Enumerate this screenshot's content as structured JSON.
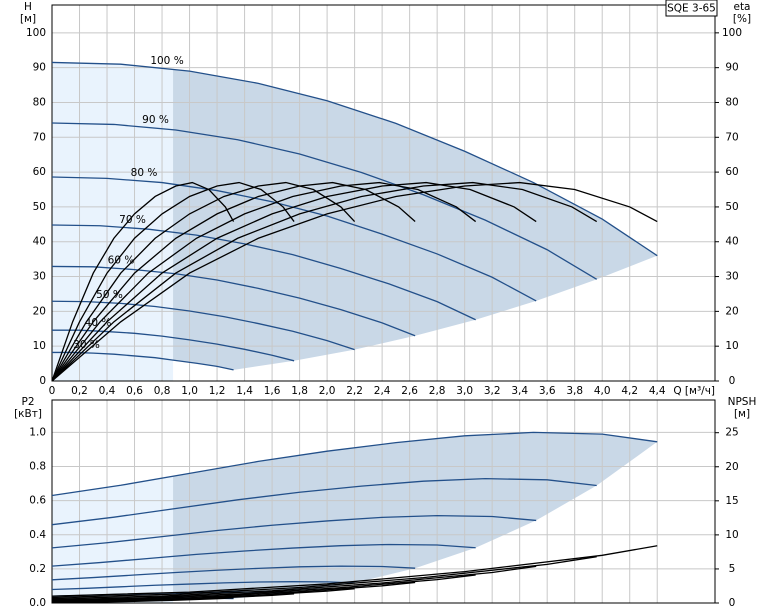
{
  "chart_data": [
    {
      "type": "line",
      "title": "SQE 3-65",
      "ylabel": "H",
      "yunit": "[м]",
      "y2label": "eta",
      "y2unit": "[%]",
      "xlabel": "Q [м³/ч]",
      "xlim": [
        0,
        4.82
      ],
      "xticks": [
        0,
        {
          "value": 0.2,
          "label": "0,2"
        },
        {
          "value": 0.4,
          "label": "0,4"
        },
        {
          "value": 0.6,
          "label": "0,6"
        },
        {
          "value": 0.8,
          "label": "0,8"
        },
        {
          "value": 1,
          "label": "1,0"
        },
        {
          "value": 1.2,
          "label": "1,2"
        },
        {
          "value": 1.4,
          "label": "1,4"
        },
        {
          "value": 1.6,
          "label": "1,6"
        },
        {
          "value": 1.8,
          "label": "1,8"
        },
        {
          "value": 2,
          "label": "2,0"
        },
        {
          "value": 2.2,
          "label": "2,2"
        },
        {
          "value": 2.4,
          "label": "2,4"
        },
        {
          "value": 2.6,
          "label": "2,6"
        },
        {
          "value": 2.8,
          "label": "2,8"
        },
        {
          "value": 3,
          "label": "3,0"
        },
        {
          "value": 3.2,
          "label": "3,2"
        },
        {
          "value": 3.4,
          "label": "3,4"
        },
        {
          "value": 3.6,
          "label": "3,6"
        },
        {
          "value": 3.8,
          "label": "3,8"
        },
        {
          "value": 4,
          "label": "4,0"
        },
        {
          "value": 4.2,
          "label": "4,2"
        },
        {
          "value": 4.4,
          "label": "4,4"
        }
      ],
      "xtick_labels": true,
      "ylim": [
        0,
        108
      ],
      "yticks": [
        0,
        10,
        20,
        30,
        40,
        50,
        60,
        70,
        80,
        90,
        100
      ],
      "y2lim": [
        0,
        108
      ],
      "y2ticks": [
        0,
        10,
        20,
        30,
        40,
        50,
        60,
        70,
        80,
        90,
        100
      ],
      "grid": true,
      "shade_from_x": 0.88,
      "shade_colors": [
        "#e9f3fd",
        "#c9d8e7"
      ],
      "series": [
        {
          "name": "100 %",
          "color": "#23508a",
          "x": [
            0,
            0.5,
            1,
            1.5,
            2,
            2.5,
            3,
            3.5,
            4,
            4.4
          ],
          "values": [
            91.5,
            91,
            89,
            85.5,
            80.5,
            74,
            66,
            57,
            46.5,
            36
          ]
        },
        {
          "name": "90 %",
          "color": "#23508a",
          "x": [
            0,
            0.45,
            0.9,
            1.35,
            1.8,
            2.25,
            2.7,
            3.15,
            3.6,
            3.96
          ],
          "values": [
            74.1,
            73.7,
            72.1,
            69.3,
            65.2,
            59.9,
            53.5,
            46.2,
            37.7,
            29.2
          ]
        },
        {
          "name": "80 %",
          "color": "#23508a",
          "x": [
            0,
            0.4,
            0.8,
            1.2,
            1.6,
            2,
            2.4,
            2.8,
            3.2,
            3.52
          ],
          "values": [
            58.6,
            58.2,
            57,
            54.7,
            51.5,
            47.4,
            42.2,
            36.5,
            29.8,
            23
          ]
        },
        {
          "name": "70 %",
          "color": "#23508a",
          "x": [
            0,
            0.35,
            0.7,
            1.05,
            1.4,
            1.75,
            2.1,
            2.45,
            2.8,
            3.08
          ],
          "values": [
            44.8,
            44.6,
            43.6,
            41.9,
            39.4,
            36.3,
            32.3,
            27.9,
            22.8,
            17.6
          ]
        },
        {
          "name": "60 %",
          "color": "#23508a",
          "x": [
            0,
            0.3,
            0.6,
            0.9,
            1.2,
            1.5,
            1.8,
            2.1,
            2.4,
            2.64
          ],
          "values": [
            32.9,
            32.8,
            32,
            30.8,
            29,
            26.6,
            23.8,
            20.5,
            16.7,
            13
          ]
        },
        {
          "name": "50 %",
          "color": "#23508a",
          "x": [
            0,
            0.25,
            0.5,
            0.75,
            1,
            1.25,
            1.5,
            1.75,
            2,
            2.2
          ],
          "values": [
            22.9,
            22.8,
            22.3,
            21.4,
            20.1,
            18.5,
            16.5,
            14.3,
            11.6,
            9
          ]
        },
        {
          "name": "40 %",
          "color": "#23508a",
          "x": [
            0,
            0.2,
            0.4,
            0.6,
            0.8,
            1,
            1.2,
            1.4,
            1.6,
            1.76
          ],
          "values": [
            14.6,
            14.6,
            14.2,
            13.7,
            12.9,
            11.8,
            10.6,
            9.1,
            7.4,
            5.8
          ]
        },
        {
          "name": "30 %",
          "color": "#23508a",
          "x": [
            0,
            0.15,
            0.3,
            0.45,
            0.6,
            0.75,
            0.9,
            1.05,
            1.2,
            1.32
          ],
          "values": [
            8.2,
            8.2,
            8,
            7.7,
            7.2,
            6.7,
            5.9,
            5.1,
            4.2,
            3.2
          ]
        },
        {
          "color": "#000000",
          "axis": "y2",
          "x": [
            0,
            0.5,
            1,
            1.5,
            2,
            2.5,
            3,
            3.4,
            3.8,
            4.2,
            4.4
          ],
          "values": [
            0,
            17,
            31,
            41,
            48,
            53,
            56,
            57,
            55,
            50,
            45.8
          ]
        },
        {
          "color": "#000000",
          "axis": "y2",
          "x": [
            0,
            0.45,
            0.9,
            1.35,
            1.8,
            2.25,
            2.7,
            3.06,
            3.42,
            3.78,
            3.96
          ],
          "values": [
            0,
            17,
            31,
            41,
            48,
            53,
            56,
            57,
            55,
            50,
            45.8
          ]
        },
        {
          "color": "#000000",
          "axis": "y2",
          "x": [
            0,
            0.4,
            0.8,
            1.2,
            1.6,
            2,
            2.4,
            2.72,
            3.04,
            3.36,
            3.52
          ],
          "values": [
            0,
            17,
            31,
            41,
            48,
            53,
            56,
            57,
            55,
            50,
            45.8
          ]
        },
        {
          "color": "#000000",
          "axis": "y2",
          "x": [
            0,
            0.35,
            0.7,
            1.05,
            1.4,
            1.75,
            2.1,
            2.38,
            2.66,
            2.94,
            3.08
          ],
          "values": [
            0,
            17,
            31,
            41,
            48,
            53,
            56,
            57,
            55,
            50,
            45.8
          ]
        },
        {
          "color": "#000000",
          "axis": "y2",
          "x": [
            0,
            0.3,
            0.6,
            0.9,
            1.2,
            1.5,
            1.8,
            2.04,
            2.28,
            2.52,
            2.64
          ],
          "values": [
            0,
            17,
            31,
            41,
            48,
            53,
            56,
            57,
            55,
            50,
            45.8
          ]
        },
        {
          "color": "#000000",
          "axis": "y2",
          "x": [
            0,
            0.25,
            0.5,
            0.75,
            1,
            1.25,
            1.5,
            1.7,
            1.9,
            2.1,
            2.2
          ],
          "values": [
            0,
            17,
            31,
            41,
            48,
            53,
            56,
            57,
            55,
            50,
            45.8
          ]
        },
        {
          "color": "#000000",
          "axis": "y2",
          "x": [
            0,
            0.2,
            0.4,
            0.6,
            0.8,
            1,
            1.2,
            1.36,
            1.52,
            1.68,
            1.76
          ],
          "values": [
            0,
            17,
            31,
            41,
            48,
            53,
            56,
            57,
            55,
            50,
            45.8
          ]
        },
        {
          "color": "#000000",
          "axis": "y2",
          "x": [
            0,
            0.15,
            0.3,
            0.45,
            0.6,
            0.75,
            0.9,
            1.02,
            1.14,
            1.26,
            1.32
          ],
          "values": [
            0,
            17,
            31,
            41,
            48,
            53,
            56,
            57,
            55,
            50,
            45.8
          ]
        }
      ]
    },
    {
      "type": "line",
      "ylabel": "P2",
      "yunit": "[кВт]",
      "y2label": "NPSH",
      "y2unit": "[м]",
      "xlim": [
        0,
        4.82
      ],
      "xticks": [
        0,
        0.2,
        0.4,
        0.6,
        0.8,
        1,
        1.2,
        1.4,
        1.6,
        1.8,
        2,
        2.2,
        2.4,
        2.6,
        2.8,
        3,
        3.2,
        3.4,
        3.6,
        3.8,
        4,
        4.2,
        4.4
      ],
      "xtick_labels": false,
      "ylim": [
        0,
        1.19
      ],
      "yticks": [
        {
          "value": 0,
          "label": "0.0"
        },
        0.2,
        0.4,
        0.6,
        0.8,
        {
          "value": 1,
          "label": "1.0"
        }
      ],
      "y2lim": [
        0,
        29.8
      ],
      "y2ticks": [
        0,
        5,
        10,
        15,
        20,
        25
      ],
      "grid": true,
      "shade_from_x": 0.88,
      "shade_colors": [
        "#e9f3fd",
        "#c9d8e7"
      ],
      "series": [
        {
          "color": "#23508a",
          "x": [
            0,
            0.5,
            1,
            1.5,
            2,
            2.5,
            3,
            3.5,
            4,
            4.4
          ],
          "values": [
            0.63,
            0.69,
            0.76,
            0.83,
            0.89,
            0.94,
            0.98,
            1.0,
            0.99,
            0.945
          ]
        },
        {
          "color": "#23508a",
          "x": [
            0,
            0.45,
            0.9,
            1.35,
            1.8,
            2.25,
            2.7,
            3.15,
            3.6,
            3.96
          ],
          "values": [
            0.459,
            0.503,
            0.554,
            0.605,
            0.649,
            0.685,
            0.714,
            0.729,
            0.722,
            0.689
          ]
        },
        {
          "color": "#23508a",
          "x": [
            0,
            0.4,
            0.8,
            1.2,
            1.6,
            2,
            2.4,
            2.8,
            3.2,
            3.52
          ],
          "values": [
            0.323,
            0.353,
            0.389,
            0.425,
            0.456,
            0.481,
            0.502,
            0.512,
            0.507,
            0.484
          ]
        },
        {
          "color": "#23508a",
          "x": [
            0,
            0.35,
            0.7,
            1.05,
            1.4,
            1.75,
            2.1,
            2.45,
            2.8,
            3.08
          ],
          "values": [
            0.216,
            0.237,
            0.261,
            0.285,
            0.305,
            0.322,
            0.336,
            0.343,
            0.34,
            0.324
          ]
        },
        {
          "color": "#23508a",
          "x": [
            0,
            0.3,
            0.6,
            0.9,
            1.2,
            1.5,
            1.8,
            2.1,
            2.4,
            2.64
          ],
          "values": [
            0.136,
            0.149,
            0.164,
            0.179,
            0.192,
            0.203,
            0.212,
            0.216,
            0.214,
            0.204
          ]
        },
        {
          "color": "#23508a",
          "x": [
            0,
            0.25,
            0.5,
            0.75,
            1,
            1.25,
            1.5,
            1.75,
            2,
            2.2
          ],
          "values": [
            0.079,
            0.086,
            0.095,
            0.104,
            0.111,
            0.118,
            0.123,
            0.125,
            0.124,
            0.118
          ]
        },
        {
          "color": "#23508a",
          "x": [
            0,
            0.2,
            0.4,
            0.6,
            0.8,
            1,
            1.2,
            1.4,
            1.6,
            1.76
          ],
          "values": [
            0.04,
            0.044,
            0.049,
            0.053,
            0.057,
            0.06,
            0.063,
            0.064,
            0.063,
            0.06
          ]
        },
        {
          "color": "#23508a",
          "x": [
            0,
            0.15,
            0.3,
            0.45,
            0.6,
            0.75,
            0.9,
            1.05,
            1.2,
            1.32
          ],
          "values": [
            0.017,
            0.019,
            0.021,
            0.022,
            0.024,
            0.025,
            0.026,
            0.027,
            0.027,
            0.026
          ]
        },
        {
          "color": "#000000",
          "axis": "y2",
          "x": [
            0,
            1,
            2,
            3,
            4,
            4.4
          ],
          "values": [
            1,
            1.6,
            2.8,
            4.6,
            7,
            8.4
          ]
        },
        {
          "color": "#000000",
          "axis": "y2",
          "x": [
            0,
            0.9,
            1.8,
            2.7,
            3.6,
            3.96
          ],
          "values": [
            0.81,
            1.3,
            2.27,
            3.73,
            5.67,
            6.8
          ]
        },
        {
          "color": "#000000",
          "axis": "y2",
          "x": [
            0,
            0.8,
            1.6,
            2.4,
            3.2,
            3.52
          ],
          "values": [
            0.64,
            1.02,
            1.79,
            2.94,
            4.48,
            5.38
          ]
        },
        {
          "color": "#000000",
          "axis": "y2",
          "x": [
            0,
            0.7,
            1.4,
            2.1,
            2.8,
            3.08
          ],
          "values": [
            0.49,
            0.78,
            1.37,
            2.25,
            3.43,
            4.12
          ]
        },
        {
          "color": "#000000",
          "axis": "y2",
          "x": [
            0,
            0.6,
            1.2,
            1.8,
            2.4,
            2.64
          ],
          "values": [
            0.36,
            0.58,
            1.01,
            1.66,
            2.52,
            3.02
          ]
        },
        {
          "color": "#000000",
          "axis": "y2",
          "x": [
            0,
            0.5,
            1,
            1.5,
            2,
            2.2
          ],
          "values": [
            0.25,
            0.4,
            0.7,
            1.15,
            1.75,
            2.1
          ]
        },
        {
          "color": "#000000",
          "axis": "y2",
          "x": [
            0,
            0.4,
            0.8,
            1.2,
            1.6,
            1.76
          ],
          "values": [
            0.16,
            0.26,
            0.45,
            0.74,
            1.12,
            1.34
          ]
        },
        {
          "color": "#000000",
          "axis": "y2",
          "x": [
            0,
            0.3,
            0.6,
            0.9,
            1.2,
            1.32
          ],
          "values": [
            0.09,
            0.14,
            0.25,
            0.41,
            0.63,
            0.76
          ]
        }
      ]
    }
  ]
}
